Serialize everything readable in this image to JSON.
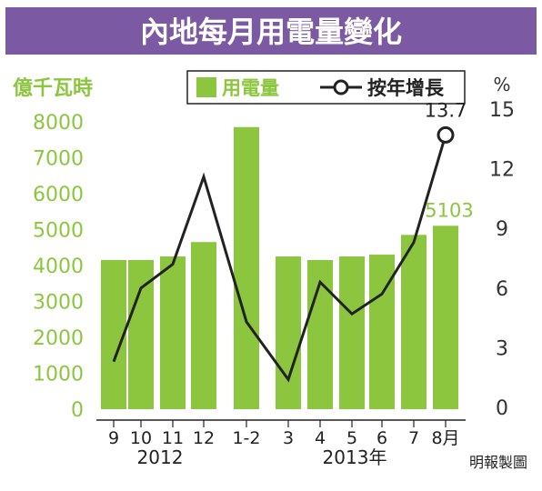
{
  "chart_data": {
    "type": "bar",
    "title": "內地每月用電量變化",
    "y_left_unit": "億千瓦時",
    "y_right_unit": "%",
    "legend": [
      {
        "label": "用電量",
        "kind": "bar"
      },
      {
        "label": "按年增長",
        "kind": "line"
      }
    ],
    "categories": [
      "9",
      "10",
      "11",
      "12",
      "1-2",
      "3",
      "4",
      "5",
      "6",
      "7",
      "8月"
    ],
    "year_labels": [
      "2012",
      "2013年"
    ],
    "series": [
      {
        "name": "用電量",
        "type": "bar",
        "axis": "left",
        "values": [
          4150,
          4150,
          4250,
          4650,
          7850,
          4250,
          4150,
          4250,
          4300,
          4850,
          5103
        ]
      },
      {
        "name": "按年增長",
        "type": "line",
        "axis": "right",
        "values": [
          2.3,
          6.0,
          7.2,
          11.6,
          4.3,
          1.4,
          6.3,
          4.7,
          5.7,
          8.3,
          13.7
        ]
      }
    ],
    "y_left_ticks": [
      "0",
      "1000",
      "2000",
      "3000",
      "4000",
      "5000",
      "6000",
      "7000",
      "8000"
    ],
    "y_right_ticks": [
      "0",
      "3",
      "6",
      "9",
      "12",
      "15"
    ],
    "ylim_left": [
      0,
      8400
    ],
    "ylim_right": [
      -1,
      16
    ],
    "data_labels": [
      {
        "series": "用電量",
        "index": 10,
        "text": "5103"
      },
      {
        "series": "按年增長",
        "index": 10,
        "text": "13.7"
      }
    ],
    "source": "明報製圖",
    "colors": {
      "bar": "#8cc63f",
      "line": "#222222",
      "left_axis_text": "#8cc63f",
      "title_bg": "#7b5aa3",
      "title_text": "#ffffff",
      "right_axis_text": "#333333"
    }
  }
}
